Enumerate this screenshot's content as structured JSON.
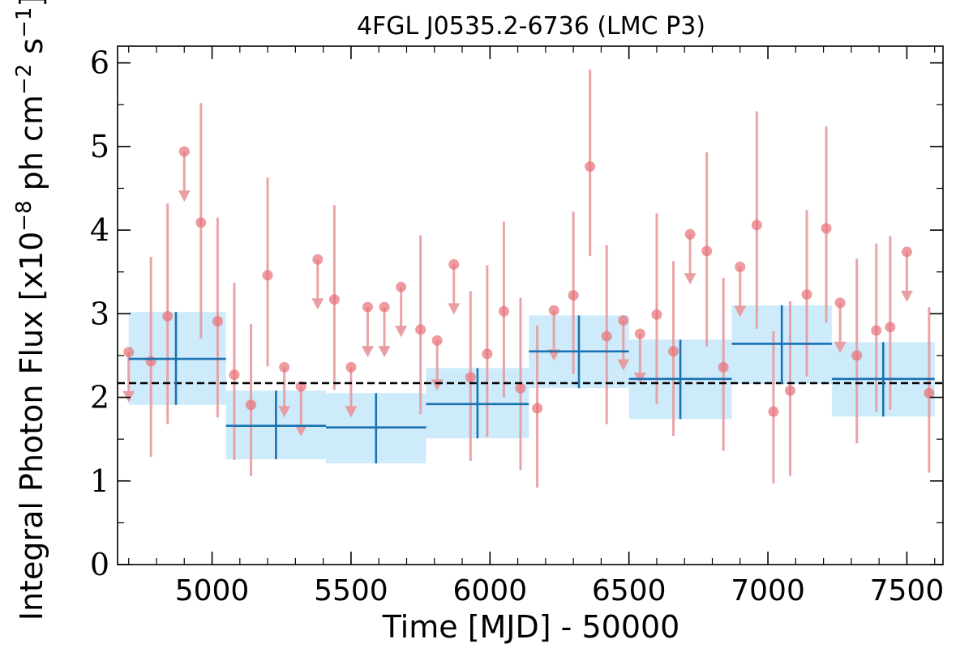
{
  "chart_data": {
    "type": "scatter",
    "title": "4FGL J0535.2-6736 (LMC P3)",
    "xlabel": "Time [MJD] - 50000",
    "ylabel_parts": [
      "Integral Photon Flux [x10",
      "−8",
      " ph cm",
      "−2",
      " s",
      "−1",
      "]"
    ],
    "xlim": [
      4660,
      7630
    ],
    "ylim": [
      0,
      6.2
    ],
    "x_ticks": [
      5000,
      5500,
      6000,
      6500,
      7000,
      7500
    ],
    "y_ticks": [
      0,
      1,
      2,
      3,
      4,
      5,
      6
    ],
    "average_flux": 2.17,
    "colors": {
      "short_points": "#e8737a",
      "short_errorbars": "#e89a9e",
      "long_bins": "#1a72b0",
      "long_bin_band": "#cdebfb",
      "average_line": "#000000"
    },
    "series": [
      {
        "name": "",
        "kind": "short-timescale detections",
        "points": [
          {
            "x": 4780,
            "y": 2.43,
            "ylo": 1.29,
            "yhi": 3.68
          },
          {
            "x": 4840,
            "y": 2.97,
            "ylo": 1.68,
            "yhi": 4.32
          },
          {
            "x": 4960,
            "y": 4.09,
            "ylo": 2.7,
            "yhi": 5.52
          },
          {
            "x": 5020,
            "y": 2.91,
            "ylo": 1.76,
            "yhi": 4.15
          },
          {
            "x": 5080,
            "y": 2.27,
            "ylo": 1.25,
            "yhi": 3.37
          },
          {
            "x": 5140,
            "y": 1.91,
            "ylo": 1.06,
            "yhi": 2.88
          },
          {
            "x": 5200,
            "y": 3.46,
            "ylo": 2.37,
            "yhi": 4.63
          },
          {
            "x": 5440,
            "y": 3.17,
            "ylo": 2.09,
            "yhi": 4.3
          },
          {
            "x": 5750,
            "y": 2.81,
            "ylo": 1.8,
            "yhi": 3.94
          },
          {
            "x": 5930,
            "y": 2.24,
            "ylo": 1.24,
            "yhi": 3.27
          },
          {
            "x": 5990,
            "y": 2.52,
            "ylo": 1.53,
            "yhi": 3.58
          },
          {
            "x": 6050,
            "y": 3.03,
            "ylo": 2.0,
            "yhi": 4.1
          },
          {
            "x": 6110,
            "y": 2.11,
            "ylo": 1.13,
            "yhi": 3.19
          },
          {
            "x": 6170,
            "y": 1.87,
            "ylo": 0.92,
            "yhi": 2.86
          },
          {
            "x": 6300,
            "y": 3.22,
            "ylo": 2.28,
            "yhi": 4.22
          },
          {
            "x": 6360,
            "y": 4.76,
            "ylo": 3.69,
            "yhi": 5.92
          },
          {
            "x": 6420,
            "y": 2.73,
            "ylo": 1.68,
            "yhi": 3.82
          },
          {
            "x": 6600,
            "y": 2.99,
            "ylo": 1.92,
            "yhi": 4.2
          },
          {
            "x": 6660,
            "y": 2.55,
            "ylo": 1.54,
            "yhi": 3.63
          },
          {
            "x": 6780,
            "y": 3.75,
            "ylo": 2.61,
            "yhi": 4.93
          },
          {
            "x": 6840,
            "y": 2.36,
            "ylo": 1.36,
            "yhi": 3.43
          },
          {
            "x": 6960,
            "y": 4.06,
            "ylo": 2.82,
            "yhi": 5.42
          },
          {
            "x": 7020,
            "y": 1.83,
            "ylo": 0.97,
            "yhi": 2.79
          },
          {
            "x": 7080,
            "y": 2.08,
            "ylo": 1.06,
            "yhi": 3.15
          },
          {
            "x": 7140,
            "y": 3.23,
            "ylo": 2.25,
            "yhi": 4.24
          },
          {
            "x": 7210,
            "y": 4.02,
            "ylo": 2.89,
            "yhi": 5.24
          },
          {
            "x": 7320,
            "y": 2.5,
            "ylo": 1.45,
            "yhi": 3.66
          },
          {
            "x": 7390,
            "y": 2.8,
            "ylo": 1.83,
            "yhi": 3.84
          },
          {
            "x": 7440,
            "y": 2.84,
            "ylo": 1.85,
            "yhi": 3.93
          },
          {
            "x": 7580,
            "y": 2.05,
            "ylo": 1.1,
            "yhi": 3.08
          }
        ]
      },
      {
        "name": "",
        "kind": "short-timescale upper limits",
        "points": [
          {
            "x": 4700,
            "y": 2.54
          },
          {
            "x": 4900,
            "y": 4.94
          },
          {
            "x": 5260,
            "y": 2.36
          },
          {
            "x": 5320,
            "y": 2.13
          },
          {
            "x": 5380,
            "y": 3.65
          },
          {
            "x": 5500,
            "y": 2.36
          },
          {
            "x": 5560,
            "y": 3.08
          },
          {
            "x": 5620,
            "y": 3.08
          },
          {
            "x": 5680,
            "y": 3.32
          },
          {
            "x": 5810,
            "y": 2.68
          },
          {
            "x": 5870,
            "y": 3.59
          },
          {
            "x": 6230,
            "y": 3.04
          },
          {
            "x": 6480,
            "y": 2.92
          },
          {
            "x": 6540,
            "y": 2.76
          },
          {
            "x": 6720,
            "y": 3.95
          },
          {
            "x": 6900,
            "y": 3.56
          },
          {
            "x": 7260,
            "y": 3.13
          },
          {
            "x": 7500,
            "y": 3.74
          }
        ]
      },
      {
        "name": "",
        "kind": "long-timescale bins",
        "bins": [
          {
            "x0": 4700,
            "x1": 5050,
            "xc": 4870,
            "y": 2.46,
            "ylo": 1.91,
            "yhi": 3.02
          },
          {
            "x0": 5050,
            "x1": 5410,
            "xc": 5230,
            "y": 1.66,
            "ylo": 1.26,
            "yhi": 2.08
          },
          {
            "x0": 5410,
            "x1": 5770,
            "xc": 5590,
            "y": 1.64,
            "ylo": 1.21,
            "yhi": 2.05
          },
          {
            "x0": 5770,
            "x1": 6140,
            "xc": 5955,
            "y": 1.92,
            "ylo": 1.51,
            "yhi": 2.35
          },
          {
            "x0": 6140,
            "x1": 6500,
            "xc": 6320,
            "y": 2.55,
            "ylo": 2.11,
            "yhi": 2.98
          },
          {
            "x0": 6500,
            "x1": 6870,
            "xc": 6685,
            "y": 2.22,
            "ylo": 1.74,
            "yhi": 2.69
          },
          {
            "x0": 6870,
            "x1": 7230,
            "xc": 7050,
            "y": 2.64,
            "ylo": 2.16,
            "yhi": 3.1
          },
          {
            "x0": 7230,
            "x1": 7600,
            "xc": 7415,
            "y": 2.22,
            "ylo": 1.77,
            "yhi": 2.66
          }
        ]
      }
    ]
  }
}
